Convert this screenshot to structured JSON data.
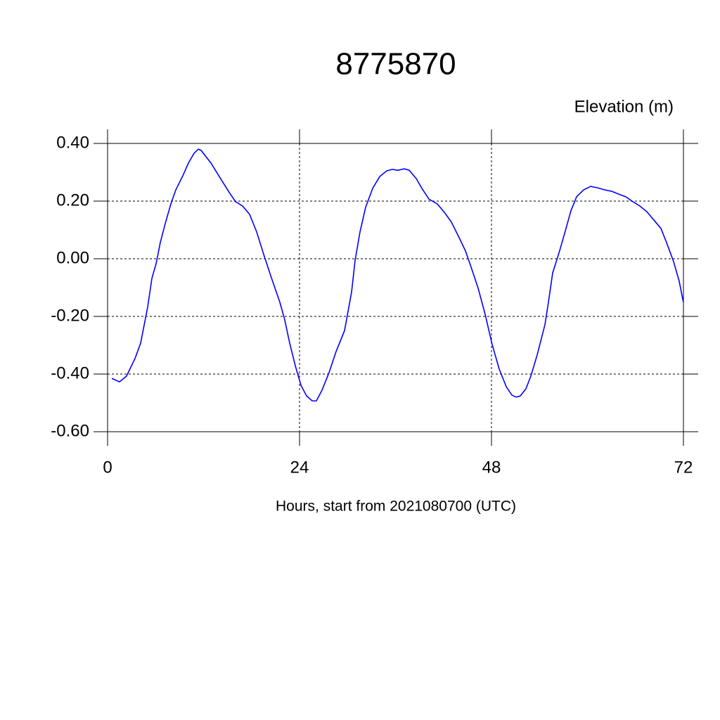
{
  "chart_data": {
    "type": "line",
    "title": "8775870",
    "subtitle": "Elevation (m)",
    "x_label": "Hours, start from 2021080700 (UTC)",
    "x": [
      0.53,
      1.49,
      2.37,
      3.43,
      4.13,
      5.01,
      5.54,
      6.07,
      6.59,
      7.21,
      7.91,
      8.53,
      9.41,
      10.11,
      10.81,
      11.34,
      11.69,
      12.92,
      14.24,
      15.12,
      16.0,
      16.88,
      17.76,
      18.64,
      19.52,
      20.4,
      21.54,
      22.15,
      22.77,
      23.47,
      24.18,
      24.88,
      25.58,
      26.11,
      26.81,
      27.69,
      28.57,
      29.63,
      30.51,
      30.95,
      31.56,
      32.26,
      33.14,
      34.02,
      34.9,
      35.6,
      36.31,
      37.1,
      37.71,
      38.59,
      39.3,
      40.18,
      41.23,
      42.11,
      42.99,
      43.87,
      44.75,
      45.45,
      46.33,
      47.21,
      48.09,
      48.97,
      49.85,
      50.55,
      51.08,
      51.6,
      52.31,
      52.92,
      53.71,
      54.68,
      55.12,
      55.65,
      56.44,
      57.32,
      57.93,
      58.64,
      59.52,
      60.4,
      61.27,
      62.15,
      63.03,
      63.91,
      64.79,
      65.67,
      66.55,
      67.43,
      68.31,
      69.19,
      69.89,
      70.77,
      71.47,
      71.99
    ],
    "series": [
      {
        "color": "#0000ff",
        "values": [
          -0.415,
          -0.427,
          -0.407,
          -0.346,
          -0.293,
          -0.168,
          -0.068,
          -0.017,
          0.056,
          0.122,
          0.19,
          0.239,
          0.288,
          0.332,
          0.366,
          0.38,
          0.376,
          0.332,
          0.273,
          0.234,
          0.198,
          0.183,
          0.154,
          0.093,
          0.015,
          -0.059,
          -0.151,
          -0.212,
          -0.293,
          -0.371,
          -0.439,
          -0.476,
          -0.493,
          -0.493,
          -0.456,
          -0.395,
          -0.322,
          -0.249,
          -0.115,
          -0.005,
          0.093,
          0.178,
          0.244,
          0.285,
          0.305,
          0.31,
          0.307,
          0.312,
          0.307,
          0.278,
          0.244,
          0.207,
          0.19,
          0.161,
          0.127,
          0.078,
          0.027,
          -0.029,
          -0.102,
          -0.193,
          -0.298,
          -0.383,
          -0.444,
          -0.473,
          -0.48,
          -0.476,
          -0.451,
          -0.407,
          -0.334,
          -0.229,
          -0.151,
          -0.049,
          0.02,
          0.105,
          0.166,
          0.215,
          0.239,
          0.251,
          0.246,
          0.239,
          0.234,
          0.224,
          0.215,
          0.198,
          0.183,
          0.163,
          0.134,
          0.105,
          0.056,
          -0.01,
          -0.078,
          -0.151
        ]
      }
    ],
    "xlim": [
      0,
      72
    ],
    "xticks": [
      0,
      24,
      48,
      72
    ],
    "ylim": [
      -0.6,
      0.4
    ],
    "yticks": [
      {
        "value": -0.6,
        "label": "-0.60"
      },
      {
        "value": -0.4,
        "label": "-0.40"
      },
      {
        "value": -0.2,
        "label": "-0.20"
      },
      {
        "value": 0,
        "label": "0.00"
      },
      {
        "value": 0.2,
        "label": "0.20"
      },
      {
        "value": 0.4,
        "label": "0.40"
      }
    ],
    "grid": true
  }
}
